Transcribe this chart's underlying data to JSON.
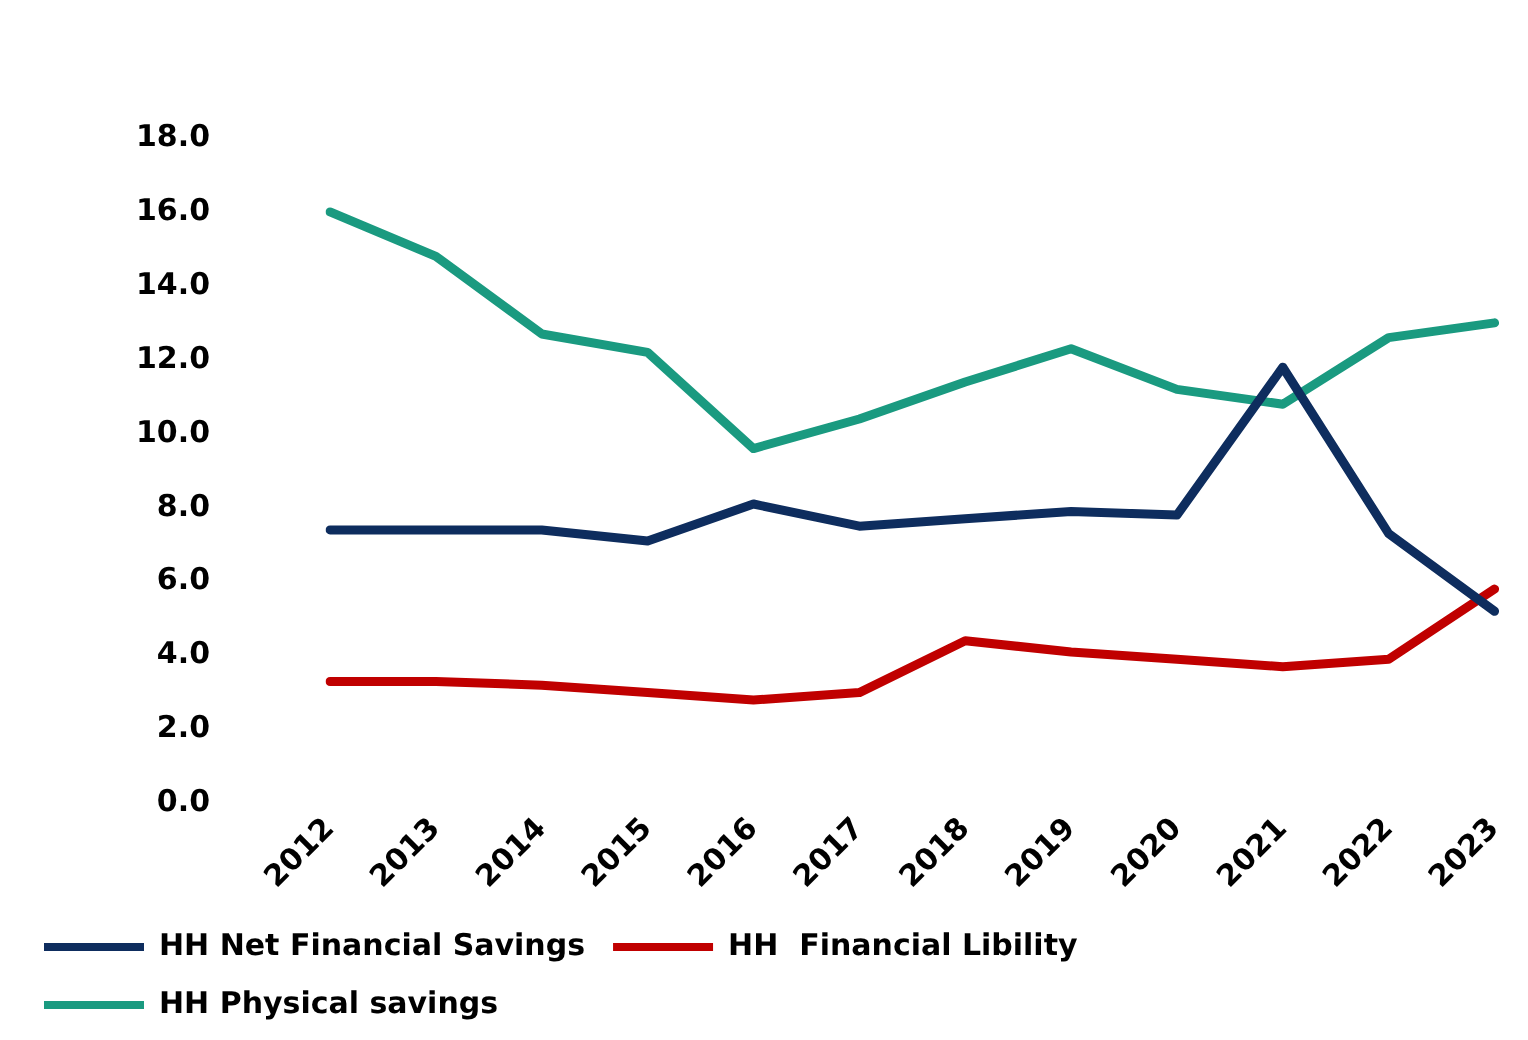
{
  "chart_data": {
    "type": "line",
    "categories": [
      "2012",
      "2013",
      "2014",
      "2015",
      "2016",
      "2017",
      "2018",
      "2019",
      "2020",
      "2021",
      "2022",
      "2023"
    ],
    "series": [
      {
        "name": "HH Net Financial Savings",
        "color": "#0e2d5e",
        "values": [
          7.4,
          7.4,
          7.4,
          7.1,
          8.1,
          7.5,
          7.7,
          7.9,
          7.8,
          11.8,
          7.3,
          5.2
        ]
      },
      {
        "name": "HH  Financial Libility",
        "color": "#c00000",
        "values": [
          3.3,
          3.3,
          3.2,
          3.0,
          2.8,
          3.0,
          4.4,
          4.1,
          3.9,
          3.7,
          3.9,
          5.8
        ]
      },
      {
        "name": "HH Physical savings",
        "color": "#1a9a80",
        "values": [
          16.0,
          14.8,
          12.7,
          12.2,
          9.6,
          10.4,
          11.4,
          12.3,
          11.2,
          10.8,
          12.6,
          13.0
        ]
      }
    ],
    "ylim": [
      0,
      18
    ],
    "yticks": [
      {
        "value": 0,
        "label": "0.0"
      },
      {
        "value": 2,
        "label": "2.0"
      },
      {
        "value": 4,
        "label": "4.0"
      },
      {
        "value": 6,
        "label": "6.0"
      },
      {
        "value": 8,
        "label": "8.0"
      },
      {
        "value": 10,
        "label": "10.0"
      },
      {
        "value": 12,
        "label": "12.0"
      },
      {
        "value": 14,
        "label": "14.0"
      },
      {
        "value": 16,
        "label": "16.0"
      },
      {
        "value": 18,
        "label": "18.0"
      }
    ],
    "grid": false,
    "legend": "bottom",
    "marker": "none",
    "line_style": "solid"
  }
}
